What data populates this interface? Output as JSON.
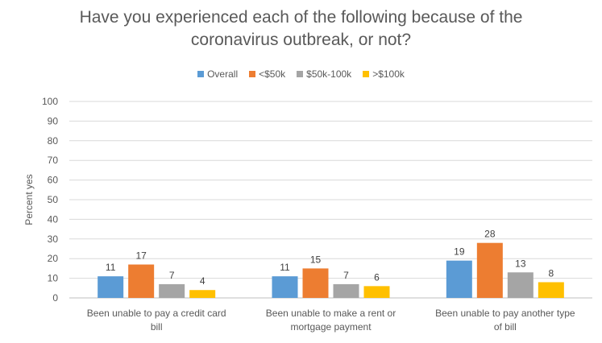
{
  "chart_data": {
    "type": "bar",
    "title_lines": [
      "Have you experienced each of the following because of the",
      "coronavirus outbreak, or not?"
    ],
    "ylabel": "Percent yes",
    "ylim": [
      0,
      100
    ],
    "yticks": [
      0,
      10,
      20,
      30,
      40,
      50,
      60,
      70,
      80,
      90,
      100
    ],
    "grid": true,
    "legend_position": "top",
    "categories": [
      [
        "Been unable to pay a credit card",
        "bill"
      ],
      [
        "Been unable to make a rent or",
        "mortgage payment"
      ],
      [
        "Been unable to pay another type",
        "of bill"
      ]
    ],
    "series": [
      {
        "name": "Overall",
        "color": "#5B9BD5",
        "values": [
          11,
          11,
          19
        ]
      },
      {
        "name": "<$50k",
        "color": "#ED7D31",
        "values": [
          17,
          15,
          28
        ]
      },
      {
        "name": "$50k-100k",
        "color": "#A5A5A5",
        "values": [
          7,
          7,
          13
        ]
      },
      {
        "name": ">$100k",
        "color": "#FFC000",
        "values": [
          4,
          6,
          8
        ]
      }
    ]
  }
}
